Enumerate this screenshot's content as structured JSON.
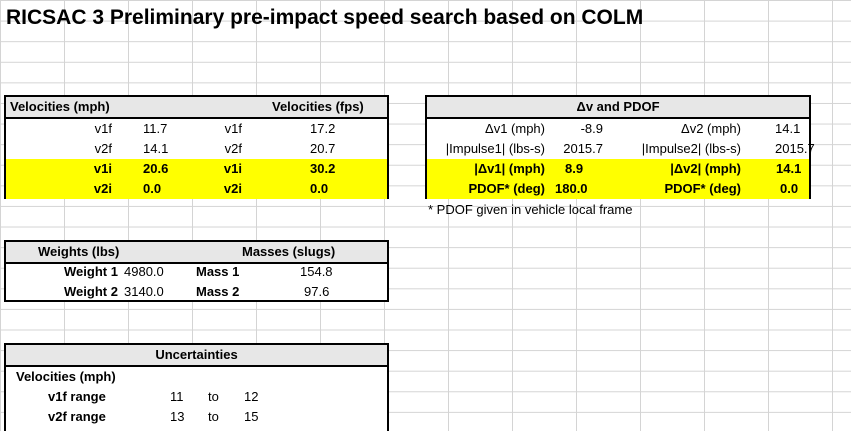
{
  "title": "RICSAC 3 Preliminary pre-impact speed search based on COLM",
  "velocities": {
    "hdr_mph": "Velocities (mph)",
    "hdr_fps": "Velocities (fps)",
    "rows": [
      {
        "l1": "v1f",
        "v1": "11.7",
        "l2": "v1f",
        "v2": "17.2"
      },
      {
        "l1": "v2f",
        "v1": "14.1",
        "l2": "v2f",
        "v2": "20.7"
      },
      {
        "l1": "v1i",
        "v1": "20.6",
        "l2": "v1i",
        "v2": "30.2"
      },
      {
        "l1": "v2i",
        "v1": "0.0",
        "l2": "v2i",
        "v2": "0.0"
      }
    ]
  },
  "dv": {
    "hdr": "Δv and PDOF",
    "rows": [
      {
        "l1": "Δv1 (mph)",
        "v1": "-8.9",
        "l2": "Δv2 (mph)",
        "v2": "14.1"
      },
      {
        "l1": "|Impulse1| (lbs-s)",
        "v1": "2015.7",
        "l2": "|Impulse2| (lbs-s)",
        "v2": "2015.7"
      },
      {
        "l1": "|Δv1| (mph)",
        "v1": "8.9",
        "l2": "|Δv2| (mph)",
        "v2": "14.1"
      },
      {
        "l1": "PDOF* (deg)",
        "v1": "180.0",
        "l2": "PDOF* (deg)",
        "v2": "0.0"
      }
    ],
    "note": "* PDOF given in vehicle local frame"
  },
  "weights": {
    "hdr_w": "Weights (lbs)",
    "hdr_m": "Masses (slugs)",
    "rows": [
      {
        "l1": "Weight 1",
        "v1": "4980.0",
        "l2": "Mass 1",
        "v2": "154.8"
      },
      {
        "l1": "Weight 2",
        "v1": "3140.0",
        "l2": "Mass 2",
        "v2": "97.6"
      }
    ]
  },
  "uncert": {
    "hdr": "Uncertainties",
    "sub": "Velocities (mph)",
    "rows": [
      {
        "l": "v1f range",
        "a": "11",
        "to": "to",
        "b": "12"
      },
      {
        "l": "v2f range",
        "a": "13",
        "to": "to",
        "b": "15"
      }
    ]
  },
  "colors": {
    "highlight": "#ffff00",
    "header": "#e7e7e7",
    "gridline": "#d4d4d4"
  }
}
